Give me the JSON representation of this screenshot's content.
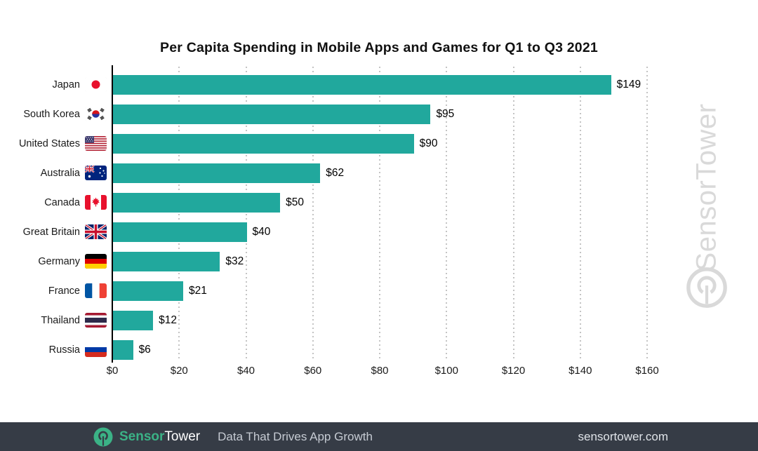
{
  "title": "Per Capita Spending in Mobile Apps and Games for Q1 to Q3 2021",
  "chart_data": {
    "type": "bar",
    "orientation": "horizontal",
    "title": "Per Capita Spending in Mobile Apps and Games for Q1 to Q3 2021",
    "xlabel": "",
    "ylabel": "",
    "categories": [
      "Japan",
      "South Korea",
      "United States",
      "Australia",
      "Canada",
      "Great Britain",
      "Germany",
      "France",
      "Thailand",
      "Russia"
    ],
    "values": [
      149,
      95,
      90,
      62,
      50,
      40,
      32,
      21,
      12,
      6
    ],
    "value_labels": [
      "$149",
      "$95",
      "$90",
      "$62",
      "$50",
      "$40",
      "$32",
      "$21",
      "$12",
      "$6"
    ],
    "flags": [
      "jp",
      "kr",
      "us",
      "au",
      "ca",
      "gb",
      "de",
      "fr",
      "th",
      "ru"
    ],
    "xlim": [
      0,
      160
    ],
    "x_tick_values": [
      0,
      20,
      40,
      60,
      80,
      100,
      120,
      140,
      160
    ],
    "x_tick_labels": [
      "$0",
      "$20",
      "$40",
      "$60",
      "$80",
      "$100",
      "$120",
      "$140",
      "$160"
    ],
    "grid": "vertical-dotted",
    "legend": "none",
    "bar_color": "#21A89D"
  },
  "watermark": {
    "text": "SensorTower"
  },
  "footer": {
    "brand_sensor": "Sensor",
    "brand_tower": "Tower",
    "tagline": "Data That Drives App Growth",
    "website": "sensortower.com",
    "bg_color": "#363C46",
    "brand_green": "#3BB286"
  }
}
